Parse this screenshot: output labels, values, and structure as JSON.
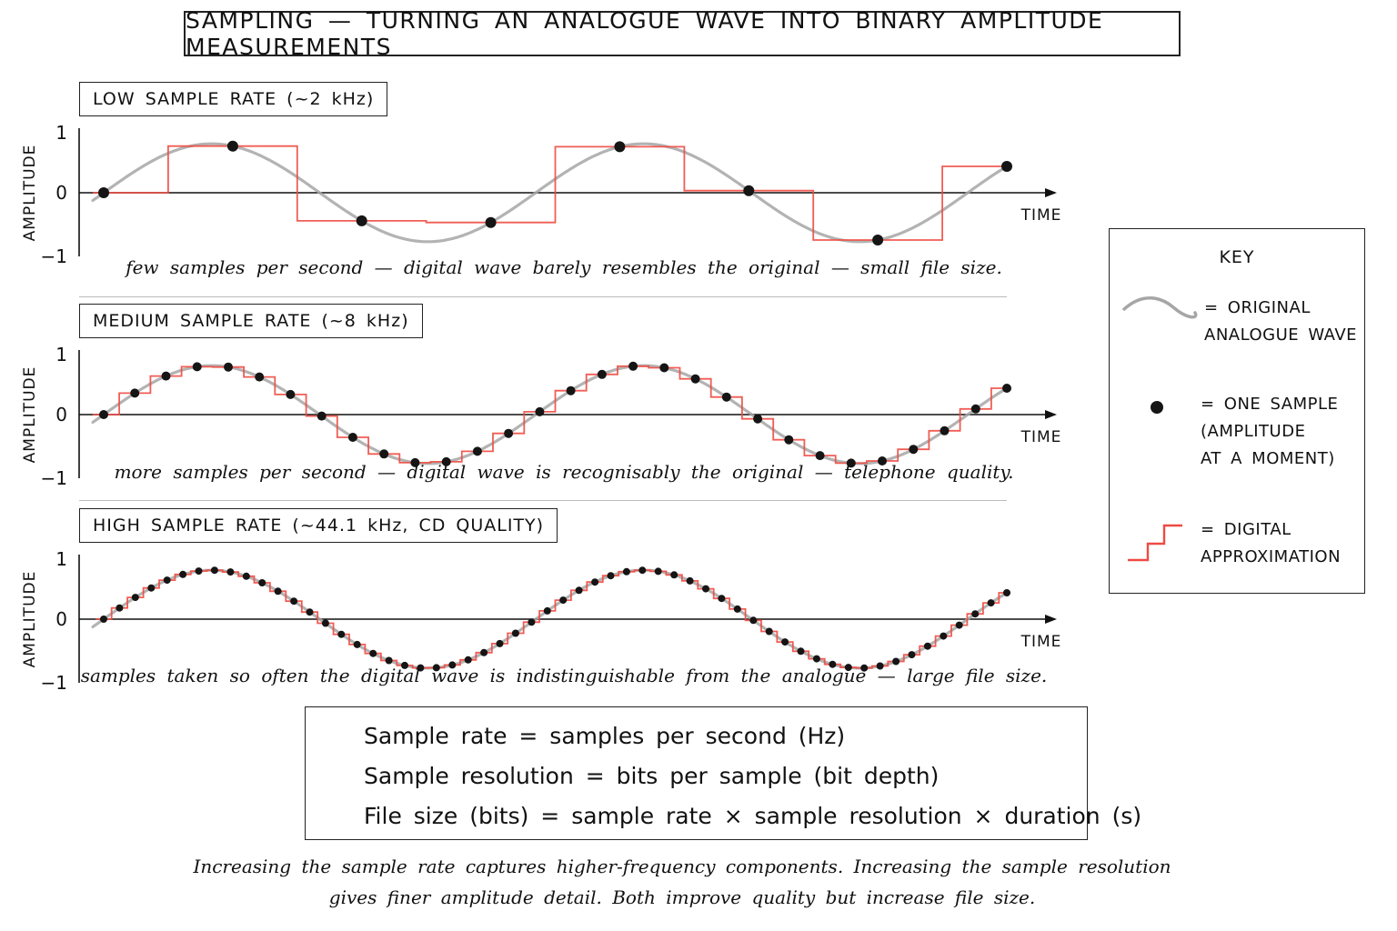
{
  "title": "SAMPLING — TURNING AN ANALOGUE WAVE INTO BINARY AMPLITUDE MEASUREMENTS",
  "colors": {
    "analogue_wave": "#a6a6a6",
    "digital_step": "#ee4b43",
    "sample_dot": "#151515"
  },
  "panels": [
    {
      "label": "LOW SAMPLE RATE (~2 kHz)",
      "axis": {
        "ylabel": "AMPLITUDE",
        "xlabel": "TIME",
        "y_ticks": [
          "1",
          "0",
          "−1"
        ]
      },
      "samples": 8,
      "caption": "few samples per second — digital wave barely resembles the original — small file size."
    },
    {
      "label": "MEDIUM SAMPLE RATE (~8 kHz)",
      "axis": {
        "ylabel": "AMPLITUDE",
        "xlabel": "TIME",
        "y_ticks": [
          "1",
          "0",
          "−1"
        ]
      },
      "samples": 30,
      "caption": "more samples per second — digital wave is recognisably the original — telephone quality."
    },
    {
      "label": "HIGH SAMPLE RATE (~44.1 kHz, CD QUALITY)",
      "axis": {
        "ylabel": "AMPLITUDE",
        "xlabel": "TIME",
        "y_ticks": [
          "1",
          "0",
          "−1"
        ]
      },
      "samples": 58,
      "caption": "samples taken so often the digital wave is indistinguishable from the analogue — large file size."
    }
  ],
  "key": {
    "title": "KEY",
    "items": [
      {
        "icon": "wave-icon",
        "text": "= ORIGINAL\n   ANALOGUE WAVE"
      },
      {
        "icon": "sample-dot-icon",
        "text": "= ONE SAMPLE\n   (AMPLITUDE\n   AT A MOMENT)"
      },
      {
        "icon": "step-icon",
        "text": "= DIGITAL\n   APPROXIMATION"
      }
    ]
  },
  "formulas": [
    "Sample rate = samples per second (Hz)",
    "Sample resolution = bits per sample (bit depth)",
    "File size (bits) = sample rate × sample resolution × duration (s)"
  ],
  "footnote": {
    "line1": "Increasing the sample rate captures higher-frequency components. Increasing the sample resolution",
    "line2": "gives finer amplitude detail. Both improve quality but increase file size."
  }
}
